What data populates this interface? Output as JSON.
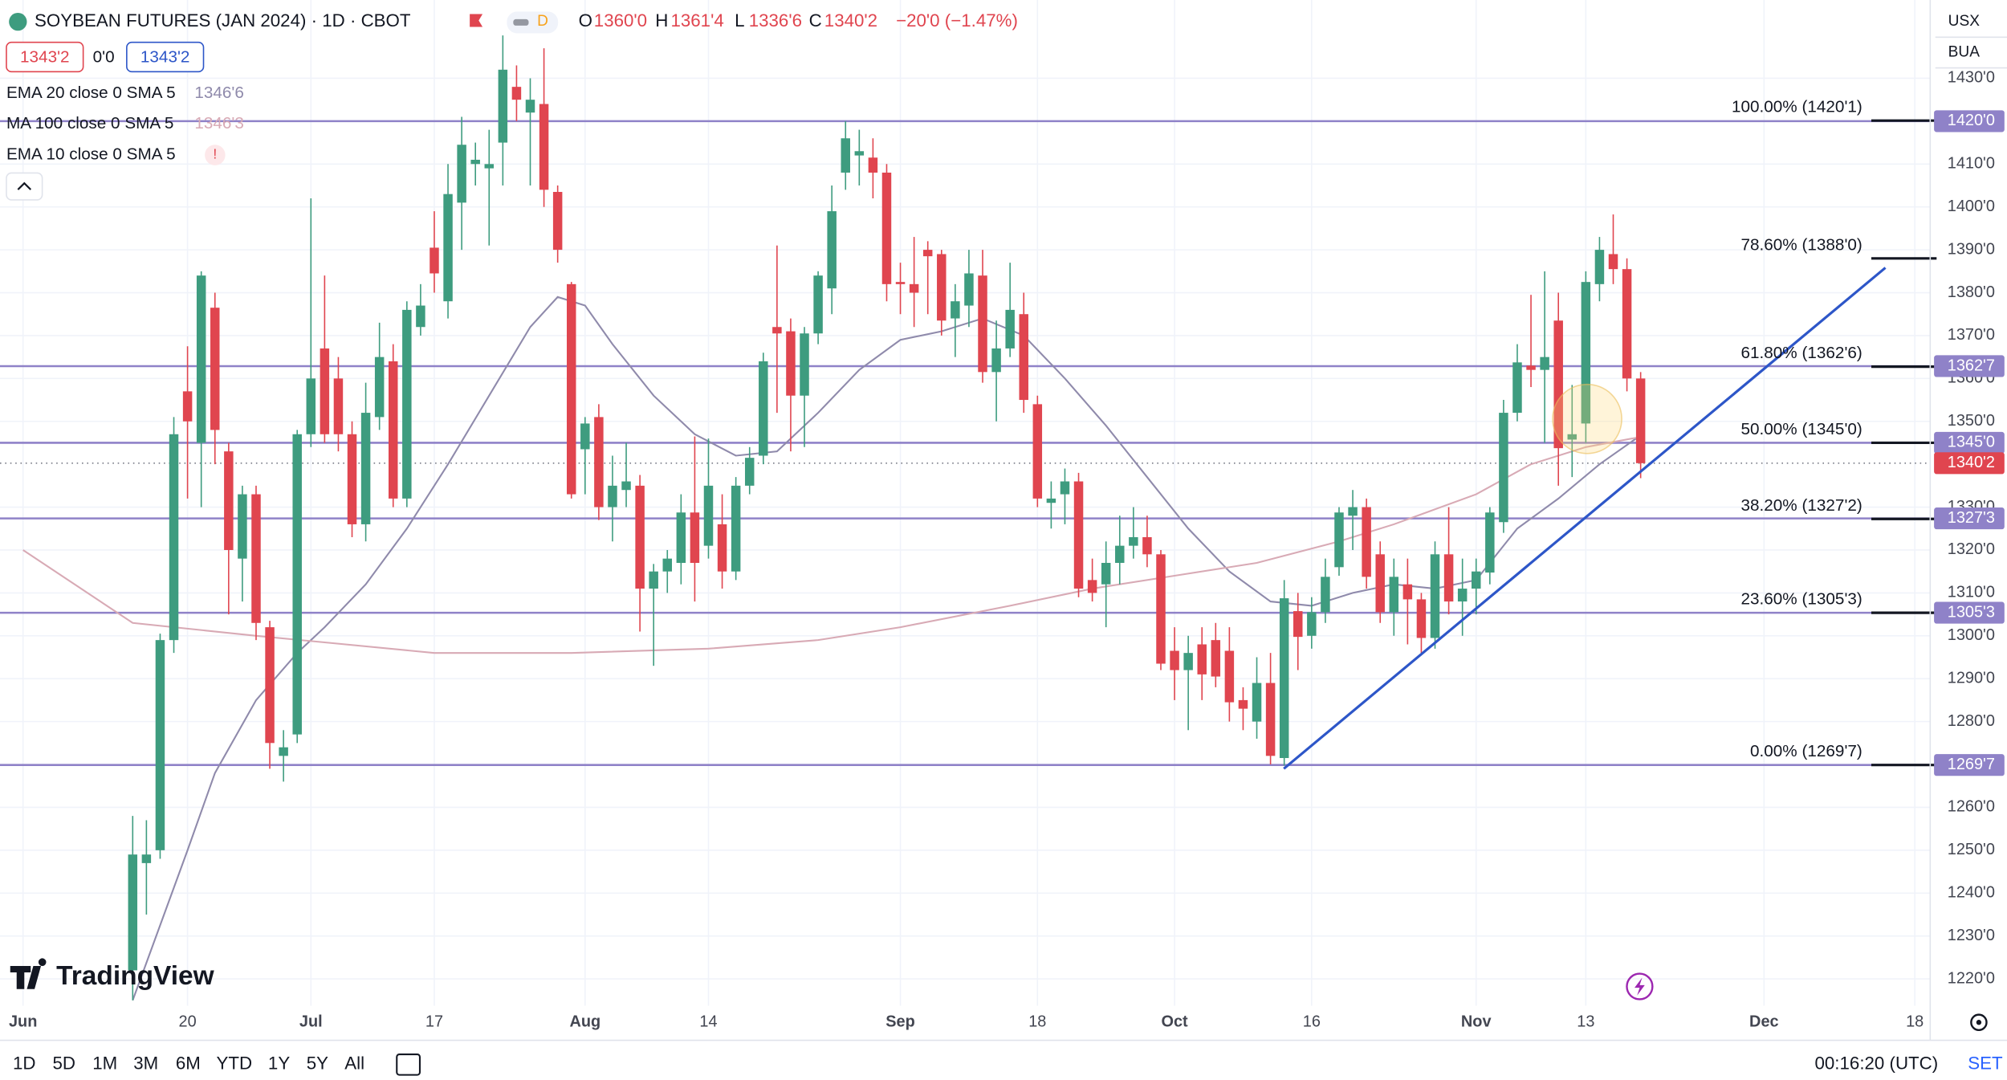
{
  "header": {
    "title": "SOYBEAN FUTURES (JAN 2024) · 1D · CBOT",
    "interval_badge": "D",
    "ohlc": [
      {
        "label": "O",
        "value": "1360'0"
      },
      {
        "label": "H",
        "value": "1361'4"
      },
      {
        "label": "L",
        "value": "1336'6"
      },
      {
        "label": "C",
        "value": "1340'2"
      }
    ],
    "change": "−20'0 (−1.47%)",
    "bid": "1343'2",
    "spread": "0'0",
    "ask": "1343'2"
  },
  "price_scale": {
    "currency": "USX",
    "unit": "BUA"
  },
  "toolbar": {
    "ranges": [
      "1D",
      "5D",
      "1M",
      "3M",
      "6M",
      "YTD",
      "1Y",
      "5Y",
      "All"
    ],
    "time": "00:16:20 (UTC)",
    "settings": "SET"
  },
  "logo": "TradingView",
  "chart_data": {
    "type": "candlestick",
    "up_color": "#3e9c7f",
    "down_color": "#e0454f",
    "grid": true,
    "ylim": [
      1213.75,
      1448.25
    ],
    "yticks": [
      {
        "value": 1430,
        "label": "1430'0"
      },
      {
        "value": 1410,
        "label": "1410'0"
      },
      {
        "value": 1400,
        "label": "1400'0"
      },
      {
        "value": 1390,
        "label": "1390'0"
      },
      {
        "value": 1380,
        "label": "1380'0"
      },
      {
        "value": 1370,
        "label": "1370'0"
      },
      {
        "value": 1360,
        "label": "1360'0"
      },
      {
        "value": 1350,
        "label": "1350'0"
      },
      {
        "value": 1330,
        "label": "1330'0"
      },
      {
        "value": 1320,
        "label": "1320'0"
      },
      {
        "value": 1310,
        "label": "1310'0"
      },
      {
        "value": 1300,
        "label": "1300'0"
      },
      {
        "value": 1290,
        "label": "1290'0"
      },
      {
        "value": 1280,
        "label": "1280'0"
      },
      {
        "value": 1260,
        "label": "1260'0"
      },
      {
        "value": 1250,
        "label": "1250'0"
      },
      {
        "value": 1240,
        "label": "1240'0"
      },
      {
        "value": 1230,
        "label": "1230'0"
      },
      {
        "value": 1220,
        "label": "1220'0"
      }
    ],
    "categories": [
      "Jun",
      null,
      null,
      null,
      null,
      null,
      null,
      null,
      null,
      null,
      null,
      null,
      "20",
      null,
      null,
      null,
      null,
      null,
      null,
      null,
      null,
      "Jul",
      null,
      null,
      null,
      null,
      null,
      null,
      null,
      null,
      "17",
      null,
      null,
      null,
      null,
      null,
      null,
      null,
      null,
      null,
      null,
      "Aug",
      null,
      null,
      null,
      null,
      null,
      null,
      null,
      null,
      "14",
      null,
      null,
      null,
      null,
      null,
      null,
      null,
      null,
      null,
      null,
      null,
      null,
      null,
      "Sep",
      null,
      null,
      null,
      null,
      null,
      null,
      null,
      null,
      null,
      "18",
      null,
      null,
      null,
      null,
      null,
      null,
      null,
      null,
      null,
      "Oct",
      null,
      null,
      null,
      null,
      null,
      null,
      null,
      null,
      null,
      "16",
      null,
      null,
      null,
      null,
      null,
      null,
      null,
      null,
      null,
      null,
      null,
      "Nov",
      null,
      null,
      null,
      null,
      null,
      null,
      null,
      "13",
      null,
      null,
      null,
      null,
      null,
      null,
      null,
      null,
      null,
      null,
      null,
      null,
      "Dec",
      null,
      null,
      null,
      null,
      null,
      null,
      null,
      null,
      null,
      null,
      "18"
    ],
    "open": [
      null,
      null,
      null,
      null,
      null,
      null,
      null,
      null,
      1222,
      1247,
      1250,
      1299,
      1357,
      1345,
      1376.5,
      1343,
      1318,
      1333,
      1302,
      1272,
      1277,
      1347,
      1367,
      1360,
      1347,
      1326,
      1351,
      1364,
      1332,
      1372,
      1390.5,
      1378,
      1401,
      1410,
      1409,
      1415,
      1428,
      1422,
      1424,
      1403.5,
      1382,
      1343.5,
      1351,
      1330,
      1334,
      1335,
      1311,
      1315,
      1317,
      1328.75,
      1321,
      1326,
      1315,
      1335,
      1342,
      1372,
      1371,
      1356,
      1370.5,
      1381,
      1408,
      1412,
      1411.5,
      1408,
      1382.5,
      1382,
      1390,
      1389,
      1374,
      1377,
      1384,
      1361.5,
      1367,
      1375,
      1354,
      1331,
      1333,
      1336,
      1313,
      1312,
      1317,
      1321,
      1323,
      1319,
      1296.5,
      1292,
      1298,
      1299,
      1296.5,
      1285,
      1280,
      1289,
      1271.5,
      1305.75,
      1300,
      1305.5,
      1316,
      1328,
      1330,
      1319,
      1305.5,
      1312,
      1308.5,
      1299.5,
      1319,
      1308,
      1311,
      1314.75,
      1326.5,
      1352,
      1363,
      1362,
      1373.5,
      1345.75,
      1349.5,
      1382,
      1389,
      1385.5,
      1360,
      null,
      null,
      null,
      null,
      null,
      null,
      null,
      null,
      null,
      null,
      null,
      null,
      null,
      null,
      null,
      null,
      null,
      null,
      null,
      null
    ],
    "high": [
      null,
      null,
      null,
      null,
      null,
      null,
      null,
      null,
      1258,
      1257,
      1300.5,
      1351,
      1367.5,
      1385,
      1380,
      1345,
      1335,
      1335,
      1303.5,
      1278,
      1348,
      1402,
      1384,
      1365,
      1350,
      1359,
      1373,
      1368,
      1378,
      1382,
      1399,
      1410,
      1421,
      1415,
      1418,
      1440,
      1433,
      1430,
      1437,
      1405,
      1382.5,
      1351,
      1354,
      1342,
      1345,
      1337.5,
      1316.75,
      1320,
      1333,
      1346.5,
      1346,
      1333,
      1337,
      1344,
      1366,
      1391,
      1374,
      1372,
      1385,
      1405,
      1420,
      1418,
      1416,
      1410,
      1387,
      1393,
      1392,
      1390,
      1382,
      1390,
      1390,
      1373.5,
      1387,
      1380,
      1356,
      1336,
      1339,
      1338,
      1318,
      1322,
      1328,
      1330,
      1328,
      1320,
      1302,
      1300,
      1302,
      1303,
      1302,
      1288,
      1295,
      1296,
      1313,
      1310,
      1309,
      1318,
      1330,
      1334,
      1332,
      1322,
      1318,
      1318,
      1310,
      1322,
      1330,
      1318,
      1318,
      1330,
      1355,
      1368,
      1379.5,
      1385,
      1380,
      1358.5,
      1385,
      1393,
      1398.25,
      1388,
      1361.5,
      null,
      null,
      null,
      null,
      null,
      null,
      null,
      null,
      null,
      null,
      null,
      null,
      null,
      null,
      null,
      null,
      null,
      null,
      null,
      null
    ],
    "low": [
      null,
      null,
      null,
      null,
      null,
      null,
      null,
      null,
      1215,
      1235,
      1248,
      1296,
      1332,
      1330,
      1340,
      1305,
      1308,
      1299,
      1269,
      1266,
      1275,
      1344,
      1345,
      1343,
      1323,
      1322,
      1348,
      1330,
      1330,
      1370,
      1380,
      1374,
      1390,
      1405,
      1391,
      1405,
      1420,
      1405,
      1400,
      1387,
      1332,
      1333,
      1327,
      1322,
      1330,
      1301,
      1293,
      1310,
      1312,
      1308,
      1318,
      1311,
      1313,
      1333,
      1340,
      1352,
      1343,
      1344,
      1368,
      1375,
      1404,
      1405,
      1402,
      1378,
      1375,
      1372,
      1375,
      1370,
      1365,
      1372,
      1359,
      1350,
      1365,
      1352,
      1330,
      1325,
      1326,
      1309,
      1308,
      1302,
      1312,
      1318,
      1316,
      1292,
      1285,
      1278,
      1285,
      1288,
      1280,
      1278,
      1276,
      1270,
      1269.75,
      1292,
      1297,
      1303,
      1314,
      1320,
      1311,
      1303,
      1300,
      1298,
      1296,
      1297,
      1305,
      1300,
      1305,
      1312,
      1324,
      1350,
      1358,
      1345,
      1335,
      1337,
      1345,
      1378,
      1382,
      1357,
      1336.75,
      null,
      null,
      null,
      null,
      null,
      null,
      null,
      null,
      null,
      null,
      null,
      null,
      null,
      null,
      null,
      null,
      null,
      null,
      null,
      null
    ],
    "close": [
      null,
      null,
      null,
      null,
      null,
      null,
      null,
      null,
      1249,
      1249,
      1299,
      1347,
      1350,
      1384,
      1348,
      1320,
      1333,
      1303,
      1275,
      1274,
      1347,
      1360,
      1347,
      1347,
      1326,
      1352,
      1365,
      1332,
      1376,
      1377,
      1384.5,
      1403,
      1414.5,
      1411,
      1410,
      1432,
      1425,
      1425,
      1404,
      1390,
      1333,
      1349.5,
      1330,
      1335,
      1336,
      1311,
      1315,
      1318,
      1328.75,
      1317,
      1335,
      1315,
      1335,
      1341.5,
      1364,
      1370.5,
      1356,
      1370.5,
      1384,
      1399,
      1416,
      1413,
      1408,
      1382,
      1382,
      1380,
      1388.5,
      1373.5,
      1378,
      1384.5,
      1361.5,
      1367,
      1376,
      1355,
      1332,
      1332,
      1336,
      1311,
      1310,
      1317,
      1321,
      1323,
      1319,
      1293.5,
      1292,
      1296,
      1291,
      1290.5,
      1284.5,
      1283,
      1289,
      1272,
      1308.75,
      1299.75,
      1305.5,
      1313.75,
      1328.75,
      1330,
      1313.75,
      1305.5,
      1313.75,
      1308.5,
      1299.5,
      1319,
      1308,
      1311,
      1315,
      1328.75,
      1352,
      1363.75,
      1362,
      1365,
      1343.75,
      1347,
      1382.5,
      1390,
      1385.5,
      1360,
      1340.25,
      null,
      null,
      null,
      null,
      null,
      null,
      null,
      null,
      null,
      null,
      null,
      null,
      null,
      null,
      null,
      null,
      null,
      null,
      null,
      null
    ],
    "overlays": [
      {
        "name": "EMA 20 close 0 SMA 5",
        "value_label": "1346'6",
        "color": "#8f8aab",
        "x": [
          8,
          12,
          14,
          17,
          20,
          22,
          25,
          28,
          31,
          34,
          37,
          39,
          41,
          43,
          46,
          49,
          52,
          55,
          58,
          61,
          64,
          67,
          70,
          73,
          76,
          79,
          82,
          85,
          88,
          91,
          94,
          97,
          100,
          103,
          106,
          109,
          112,
          115,
          118
        ],
        "values": [
          1215,
          1250,
          1268,
          1285,
          1296,
          1302,
          1312,
          1325,
          1340,
          1356,
          1372,
          1379,
          1377,
          1368,
          1356,
          1347,
          1342,
          1343,
          1352,
          1362,
          1369,
          1371,
          1374,
          1370,
          1360,
          1349,
          1337,
          1325,
          1315,
          1308,
          1307,
          1310,
          1312,
          1311,
          1313,
          1325,
          1332,
          1340,
          1346.75
        ]
      },
      {
        "name": "MA 100 close 0 SMA 5",
        "value_label": "1346'3",
        "color": "#d8aab5",
        "x": [
          0,
          8,
          17,
          30,
          40,
          50,
          58,
          64,
          72,
          78,
          84,
          90,
          96,
          100,
          106,
          110,
          114,
          118
        ],
        "values": [
          1320,
          1303,
          1300,
          1296,
          1296,
          1297,
          1299,
          1302,
          1307,
          1311,
          1314,
          1317,
          1322,
          1326,
          1333,
          1340,
          1344,
          1346.375
        ]
      },
      {
        "name": "EMA 10 close 0 SMA 5",
        "status": "!"
      }
    ],
    "horizontal_lines": [
      {
        "value": 1420,
        "label": "1420'0"
      },
      {
        "value": 1362.875,
        "label": "1362'7"
      },
      {
        "value": 1345,
        "label": "1345'0"
      },
      {
        "value": 1327.375,
        "label": "1327'3"
      },
      {
        "value": 1305.375,
        "label": "1305'3"
      },
      {
        "value": 1269.875,
        "label": "1269'7"
      }
    ],
    "line_color": "#8f82c8",
    "fib_levels": [
      {
        "value": 1420.125,
        "label": "100.00% (1420'1)"
      },
      {
        "value": 1388,
        "label": "78.60% (1388'0)"
      },
      {
        "value": 1362.75,
        "label": "61.80% (1362'6)"
      },
      {
        "value": 1345,
        "label": "50.00% (1345'0)"
      },
      {
        "value": 1327.25,
        "label": "38.20% (1327'2)"
      },
      {
        "value": 1305.375,
        "label": "23.60% (1305'3)"
      },
      {
        "value": 1269.875,
        "label": "0.00% (1269'7)"
      }
    ],
    "last_price": {
      "value": 1340.25,
      "label": "1340'2"
    }
  }
}
